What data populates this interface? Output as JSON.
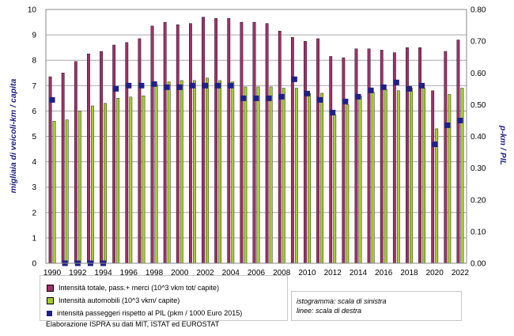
{
  "chart_data": {
    "type": "bar",
    "categories": [
      1990,
      1991,
      1992,
      1993,
      1994,
      1995,
      1996,
      1997,
      1998,
      1999,
      2000,
      2001,
      2002,
      2003,
      2004,
      2005,
      2006,
      2007,
      2008,
      2009,
      2010,
      2011,
      2012,
      2013,
      2014,
      2015,
      2016,
      2017,
      2018,
      2019,
      2020,
      2021,
      2022
    ],
    "x_tick_labels": [
      "1990",
      "1992",
      "1994",
      "1996",
      "1998",
      "2000",
      "2002",
      "2004",
      "2006",
      "2008",
      "2010",
      "2012",
      "2014",
      "2016",
      "2018",
      "2020",
      "2022"
    ],
    "y_left": {
      "label": "migliaia di veicoli-km / capita",
      "min": 0,
      "max": 10,
      "tick_labels": [
        "0",
        "1",
        "2",
        "3",
        "4",
        "5",
        "6",
        "7",
        "8",
        "9",
        "10"
      ]
    },
    "y_right": {
      "label": "p-km / PIL",
      "min": 0,
      "max": 0.8,
      "tick_labels": [
        "0.00",
        "0.10",
        "0.20",
        "0.30",
        "0.40",
        "0.50",
        "0.60",
        "0.70",
        "0.80"
      ]
    },
    "series": [
      {
        "name": "Intensità totale, pass.+ merci (10^3 vkm tot/ capite)",
        "kind": "bar",
        "axis": "left",
        "color": "#a0306a",
        "values": [
          7.35,
          7.5,
          7.95,
          8.25,
          8.35,
          8.6,
          8.7,
          8.85,
          9.35,
          9.5,
          9.4,
          9.45,
          9.7,
          9.65,
          9.65,
          9.5,
          9.5,
          9.45,
          9.15,
          8.9,
          8.75,
          8.85,
          8.15,
          8.1,
          8.45,
          8.45,
          8.4,
          8.3,
          8.5,
          8.5,
          6.8,
          8.35,
          8.8
        ]
      },
      {
        "name": "Intensità automobili (10^3 vkm/ capite)",
        "kind": "bar",
        "axis": "left",
        "color": "#a6cc2c",
        "values": [
          5.6,
          5.65,
          6.0,
          6.2,
          6.3,
          6.5,
          6.55,
          6.6,
          7.05,
          7.15,
          7.2,
          7.2,
          7.3,
          7.2,
          7.15,
          6.95,
          6.95,
          6.95,
          6.9,
          6.9,
          6.7,
          6.7,
          5.85,
          6.25,
          6.6,
          6.75,
          6.85,
          6.8,
          6.9,
          6.9,
          5.3,
          6.65,
          6.9
        ]
      },
      {
        "name": "intensità passeggeri rispetto al PIL (pkm / 1000 Euro 2015)",
        "kind": "marker",
        "axis": "right",
        "color": "#1f1f8c",
        "values": [
          0.515,
          0,
          0,
          0,
          0,
          0.55,
          0.56,
          0.56,
          0.565,
          0.555,
          0.555,
          0.56,
          0.56,
          0.56,
          0.56,
          0.52,
          0.52,
          0.52,
          0.525,
          0.58,
          0.535,
          0.515,
          0.475,
          0.51,
          0.525,
          0.545,
          0.555,
          0.57,
          0.55,
          0.56,
          0.375,
          0.435,
          0.45
        ]
      }
    ]
  },
  "note": {
    "line1": "istogramma: scala di sinistra",
    "line2": "linee: scala di destra"
  },
  "source": "Elaborazione ISPRA  su dati MIT, ISTAT ed EUROSTAT"
}
